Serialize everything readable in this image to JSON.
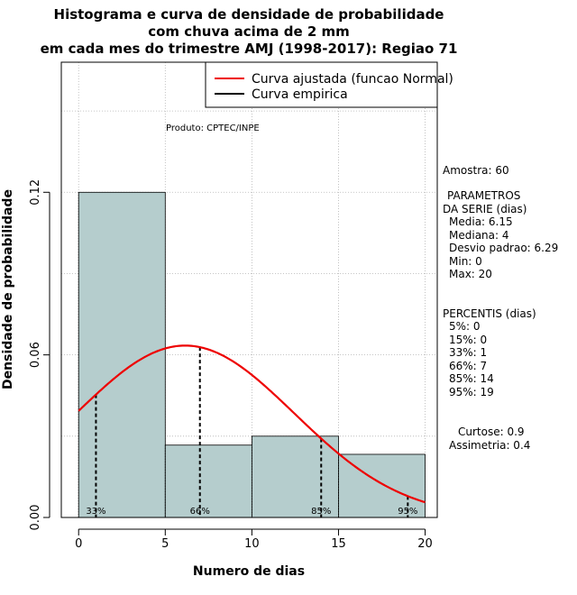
{
  "chart_data": {
    "type": "histogram",
    "title_lines": [
      "Histograma e curva de densidade de probabilidade",
      "com chuva acima de 2 mm",
      "em cada mes do trimestre AMJ (1998-2017): Regiao 71"
    ],
    "xlabel": "Numero de dias",
    "ylabel": "Densidade de probabilidade",
    "xlim": [
      -1,
      20.7
    ],
    "ylim": [
      0,
      0.168
    ],
    "x_ticks": [
      0,
      5,
      10,
      15,
      20
    ],
    "y_ticks": [
      0.0,
      0.06,
      0.12
    ],
    "y_tick_labels": [
      "0.00",
      "0.06",
      "0.12"
    ],
    "bins": [
      {
        "x0": 0,
        "x1": 5,
        "density": 0.12
      },
      {
        "x0": 5,
        "x1": 10,
        "density": 0.0267
      },
      {
        "x0": 10,
        "x1": 15,
        "density": 0.03
      },
      {
        "x0": 15,
        "x1": 20,
        "density": 0.0233
      }
    ],
    "fitted_curve": {
      "name": "Curva ajustada (funcao Normal)",
      "distribution": "normal",
      "mean": 6.15,
      "sd": 6.29,
      "x_range": [
        0,
        20
      ],
      "color": "#ee0000"
    },
    "empirical_curve": {
      "name": "Curva empirica",
      "color": "#000000"
    },
    "percentile_lines": [
      {
        "label": "33%",
        "x": 1
      },
      {
        "label": "66%",
        "x": 7
      },
      {
        "label": "85%",
        "x": 14
      },
      {
        "label": "95%",
        "x": 19
      }
    ],
    "annotation": "Produto: CPTEC/INPE",
    "bar_color": "#b5cdcd",
    "grid": true,
    "legend_position": "top-right"
  },
  "side_panel": {
    "sample": "Amostra: 60",
    "params_title_1": "PARAMETROS",
    "params_title_2": "DA SERIE (dias)",
    "params": [
      "Media: 6.15",
      "Mediana: 4",
      "Desvio padrao: 6.29",
      "Min: 0",
      "Max: 20"
    ],
    "percentiles_title": "PERCENTIS (dias)",
    "percentiles": [
      "5%: 0",
      "15%: 0",
      "33%: 1",
      "66%: 7",
      "85%: 14",
      "95%: 19"
    ],
    "kurtosis": "Curtose: 0.9",
    "skewness": "Assimetria: 0.4"
  }
}
